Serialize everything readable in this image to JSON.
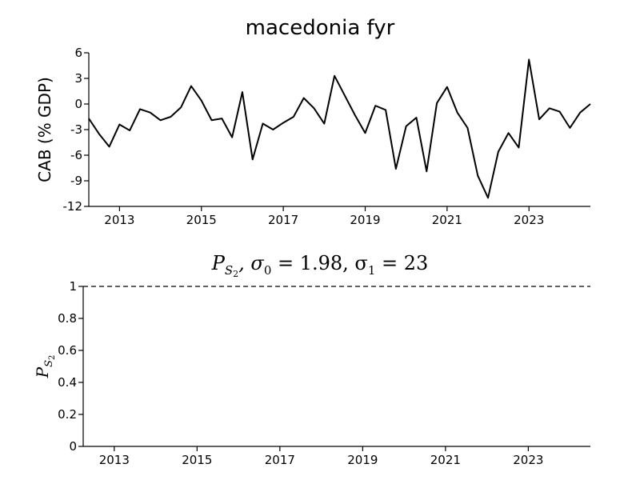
{
  "chart_data": [
    {
      "type": "line",
      "title": "macedonia fyr",
      "ylabel": "CAB (% GDP)",
      "ylim": [
        -12,
        6
      ],
      "xlim": [
        2012.25,
        2024.5
      ],
      "yticks": [
        -12,
        -9,
        -6,
        -3,
        0,
        3,
        6
      ],
      "yticklabels": [
        "-12",
        "-9",
        "-6",
        "-3",
        "0",
        "3",
        "6"
      ],
      "xticks": [
        2013,
        2015,
        2017,
        2019,
        2021,
        2023
      ],
      "xticklabels": [
        "2013",
        "2015",
        "2017",
        "2019",
        "2021",
        "2023"
      ],
      "series": [
        {
          "x": [
            2012.25,
            2012.5,
            2012.75,
            2013.0,
            2013.25,
            2013.5,
            2013.75,
            2014.0,
            2014.25,
            2014.5,
            2014.75,
            2015.0,
            2015.25,
            2015.5,
            2015.75,
            2016.0,
            2016.25,
            2016.5,
            2016.75,
            2017.0,
            2017.25,
            2017.5,
            2017.75,
            2018.0,
            2018.25,
            2018.5,
            2018.75,
            2019.0,
            2019.25,
            2019.5,
            2019.75,
            2020.0,
            2020.25,
            2020.5,
            2020.75,
            2021.0,
            2021.25,
            2021.5,
            2021.75,
            2022.0,
            2022.25,
            2022.5,
            2022.75,
            2023.0,
            2023.25,
            2023.5,
            2023.75,
            2024.0,
            2024.25,
            2024.5
          ],
          "values": [
            -1.7,
            -3.5,
            -5.0,
            -2.4,
            -3.1,
            -0.6,
            -1.0,
            -1.9,
            -1.5,
            -0.4,
            2.1,
            0.4,
            -1.9,
            -1.7,
            -3.9,
            1.4,
            -6.5,
            -2.3,
            -3.0,
            -2.2,
            -1.5,
            0.7,
            -0.5,
            -2.3,
            3.3,
            1.0,
            -1.3,
            -3.4,
            -0.2,
            -0.7,
            -7.6,
            -2.6,
            -1.6,
            -7.9,
            0.1,
            2.0,
            -1.0,
            -2.8,
            -8.4,
            -11.0,
            -5.6,
            -3.4,
            -5.1,
            5.2,
            -1.8,
            -0.5,
            -0.9,
            -2.8,
            -1.0,
            0.0
          ]
        }
      ]
    },
    {
      "type": "line",
      "title": "P_{S_2}, σ_0 = 1.98, σ_1 = 23",
      "title_main": "P",
      "title_sub": "S",
      "title_subsub": "2",
      "title_rest": ", σ",
      "title_s0sub": "0",
      "title_s0val": " = 1.98, σ",
      "title_s1sub": "1",
      "title_s1val": " = 23",
      "ylabel": "P_{S_2}",
      "ylabel_main": "P",
      "ylabel_sub": "S",
      "ylabel_subsub": "2",
      "ylim": [
        0,
        1
      ],
      "xlim": [
        2012.25,
        2024.5
      ],
      "yticks": [
        0,
        0.2,
        0.4,
        0.6,
        0.8,
        1
      ],
      "yticklabels": [
        "0",
        "0.2",
        "0.4",
        "0.6",
        "0.8",
        "1"
      ],
      "xticks": [
        2013,
        2015,
        2017,
        2019,
        2021,
        2023
      ],
      "xticklabels": [
        "2013",
        "2015",
        "2017",
        "2019",
        "2021",
        "2023"
      ],
      "series": [
        {
          "style": "dashed",
          "x": [
            2012.25,
            2024.5
          ],
          "values": [
            1,
            1
          ]
        }
      ]
    }
  ]
}
